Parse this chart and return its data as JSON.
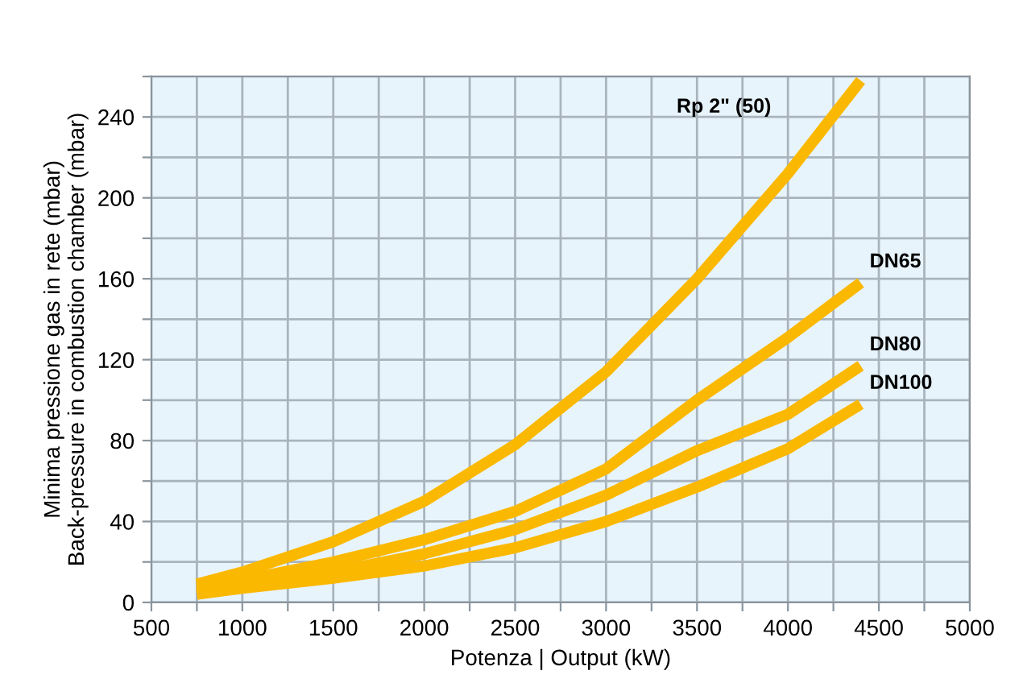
{
  "chart_data": {
    "type": "line",
    "xlabel": "Potenza | Output (kW)",
    "ylabel": "Minima pressione gas in rete (mbar)\nBack-pressure in combustion chamber (mbar)",
    "x": [
      750,
      1000,
      1500,
      2000,
      2500,
      3000,
      3500,
      4000,
      4400
    ],
    "series": [
      {
        "name": "Rp 2\" (50)",
        "color": "#fbb800",
        "values": [
          9,
          15,
          30,
          50,
          78,
          114,
          160,
          212,
          258
        ]
      },
      {
        "name": "DN65",
        "color": "#fbb800",
        "values": [
          7,
          11,
          20,
          31,
          45,
          66,
          100,
          131,
          158
        ]
      },
      {
        "name": "DN80",
        "color": "#fbb800",
        "values": [
          5,
          8,
          15,
          24,
          36,
          53,
          75,
          93,
          117
        ]
      },
      {
        "name": "DN100",
        "color": "#fbb800",
        "values": [
          4,
          7,
          12,
          18,
          27,
          40,
          57,
          76,
          98
        ]
      }
    ],
    "xlim": [
      500,
      5000
    ],
    "ylim": [
      0,
      260
    ],
    "xticks": [
      500,
      {
        "value": 750,
        "label": null
      },
      1000,
      {
        "value": 1250,
        "label": null
      },
      1500,
      {
        "value": 1750,
        "label": null
      },
      2000,
      {
        "value": 2250,
        "label": null
      },
      2500,
      {
        "value": 2750,
        "label": null
      },
      3000,
      {
        "value": 3250,
        "label": null
      },
      3500,
      {
        "value": 3750,
        "label": null
      },
      4000,
      {
        "value": 4250,
        "label": null
      },
      4500,
      {
        "value": 4750,
        "label": null
      },
      5000
    ],
    "yticks": [
      0,
      {
        "value": 20,
        "label": null
      },
      40,
      {
        "value": 60,
        "label": null
      },
      80,
      {
        "value": 100,
        "label": null
      },
      120,
      {
        "value": 140,
        "label": null
      },
      160,
      {
        "value": 180,
        "label": null
      },
      200,
      {
        "value": 220,
        "label": null
      },
      240,
      {
        "value": 260,
        "label": null
      }
    ],
    "grid": true,
    "legend": false,
    "marker": "none",
    "line_style": "solid"
  }
}
